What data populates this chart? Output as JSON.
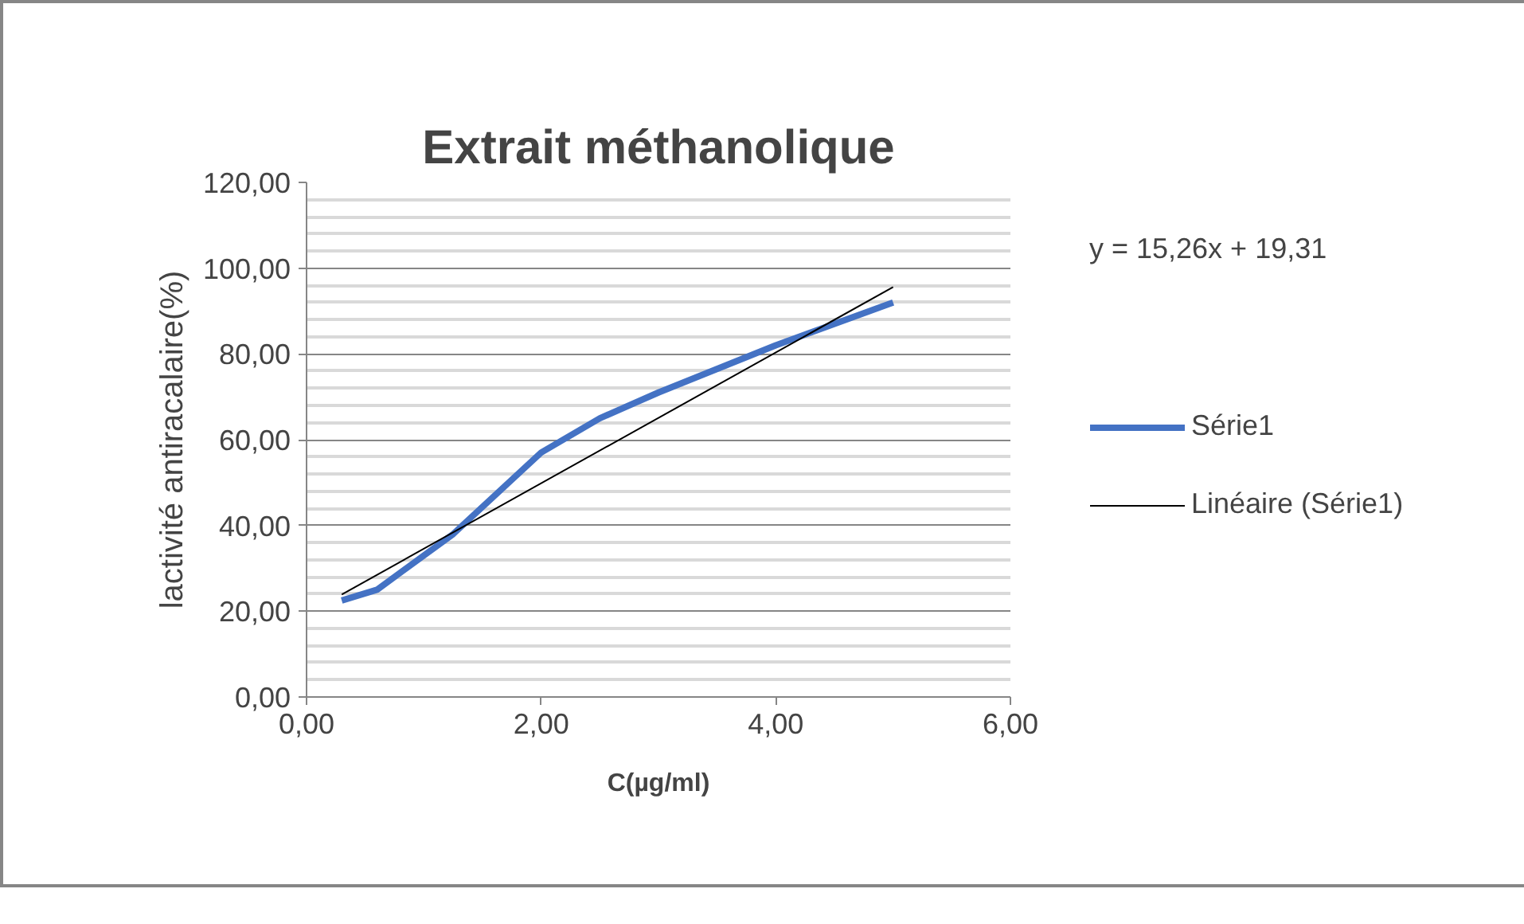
{
  "chart_data": {
    "type": "line",
    "title": "Extrait méthanolique",
    "xlabel": "C(µg/ml)",
    "ylabel": "lactivité antiracalaire(%)",
    "series": [
      {
        "name": "Série1",
        "color": "#4472c4",
        "x": [
          0.3,
          0.6,
          1.25,
          2,
          2.5,
          3,
          4,
          5
        ],
        "values": [
          22.5,
          25,
          38,
          57,
          65,
          71,
          82,
          92
        ]
      },
      {
        "name": "Linéaire (Série1)",
        "color": "#000000",
        "x": [
          0.3,
          5
        ],
        "values": [
          23.9,
          95.6
        ]
      }
    ],
    "xlim": [
      0,
      6
    ],
    "ylim": [
      0,
      120
    ],
    "xticks": [
      {
        "value": 0,
        "label": "0,00"
      },
      {
        "value": 2,
        "label": "2,00"
      },
      {
        "value": 4,
        "label": "4,00"
      },
      {
        "value": 6,
        "label": "6,00"
      }
    ],
    "yticks": [
      {
        "value": 0,
        "label": "0,00"
      },
      {
        "value": 20,
        "label": "20,00"
      },
      {
        "value": 40,
        "label": "40,00"
      },
      {
        "value": 60,
        "label": "60,00"
      },
      {
        "value": 80,
        "label": "80,00"
      },
      {
        "value": 100,
        "label": "100,00"
      },
      {
        "value": 120,
        "label": "120,00"
      }
    ],
    "annotations": [
      "y = 15,26x + 19,31"
    ],
    "grid": "y",
    "legend": "right"
  }
}
